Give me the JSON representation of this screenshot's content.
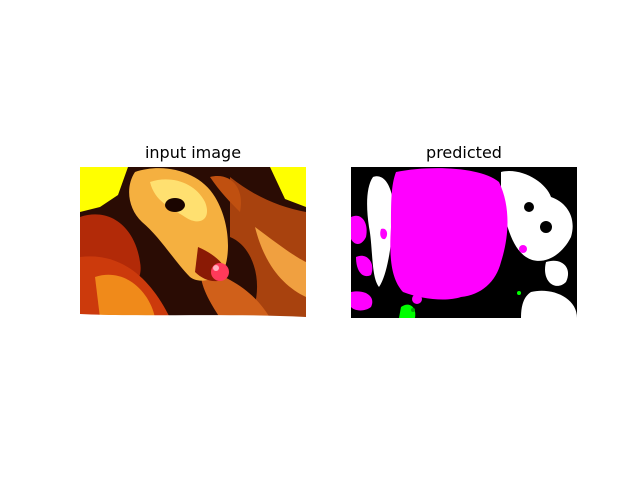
{
  "panels": [
    {
      "title": "input image",
      "content": "photo of a dog's head resting in a blanket, heavily contrast-saturated (yellow, orange, red, dark brown)",
      "palette": {
        "yellow": "#ffff00",
        "orange": "#f08a1a",
        "red": "#cc1a0a",
        "darkbrown": "#2a0c04",
        "pink": "#ff3a5a"
      }
    },
    {
      "title": "predicted",
      "content": "segmentation mask: large magenta region, black background, white blotches, small green specks",
      "palette": {
        "background": "#000000",
        "magenta": "#ff00ff",
        "white": "#ffffff",
        "green": "#00ff00"
      }
    }
  ]
}
